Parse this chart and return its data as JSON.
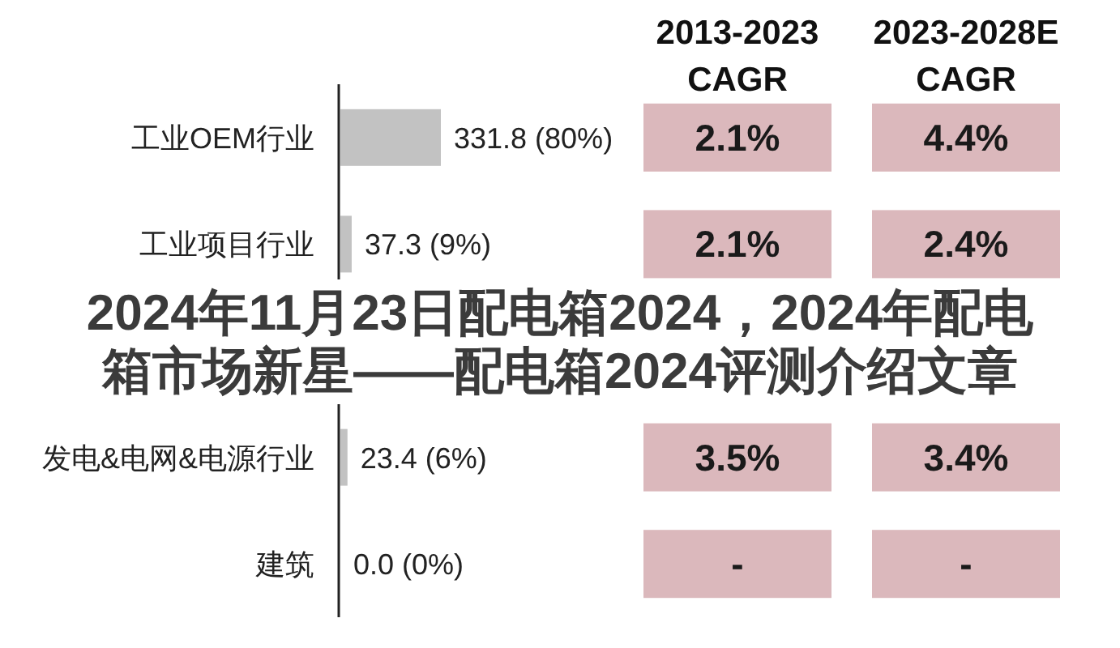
{
  "chart_data": [
    {
      "type": "bar",
      "orientation": "horizontal",
      "title": "2024年11月23日配电箱2024，2024年配电箱市场新星——配电箱2024评测介绍文章",
      "categories": [
        "工业OEM行业",
        "工业项目行业",
        null,
        "发电&电网&电源行业",
        "建筑"
      ],
      "values": [
        331.8,
        37.3,
        null,
        23.4,
        0.0
      ],
      "value_labels": [
        "331.8 (80%)",
        "37.3 (9%)",
        null,
        "23.4 (6%)",
        "0.0 (0%)"
      ],
      "color": "#c2c2c2"
    },
    {
      "type": "other",
      "categories": [
        "2013-2023 CAGR",
        "2023-2028E CAGR"
      ],
      "cell_labels": [
        [
          "2.1%",
          "4.4%"
        ],
        [
          "2.1%",
          "2.4%"
        ],
        [
          null,
          null
        ],
        [
          "3.5%",
          "3.4%"
        ],
        [
          "-",
          "-"
        ]
      ],
      "color": "#dbb8bc"
    }
  ]
}
